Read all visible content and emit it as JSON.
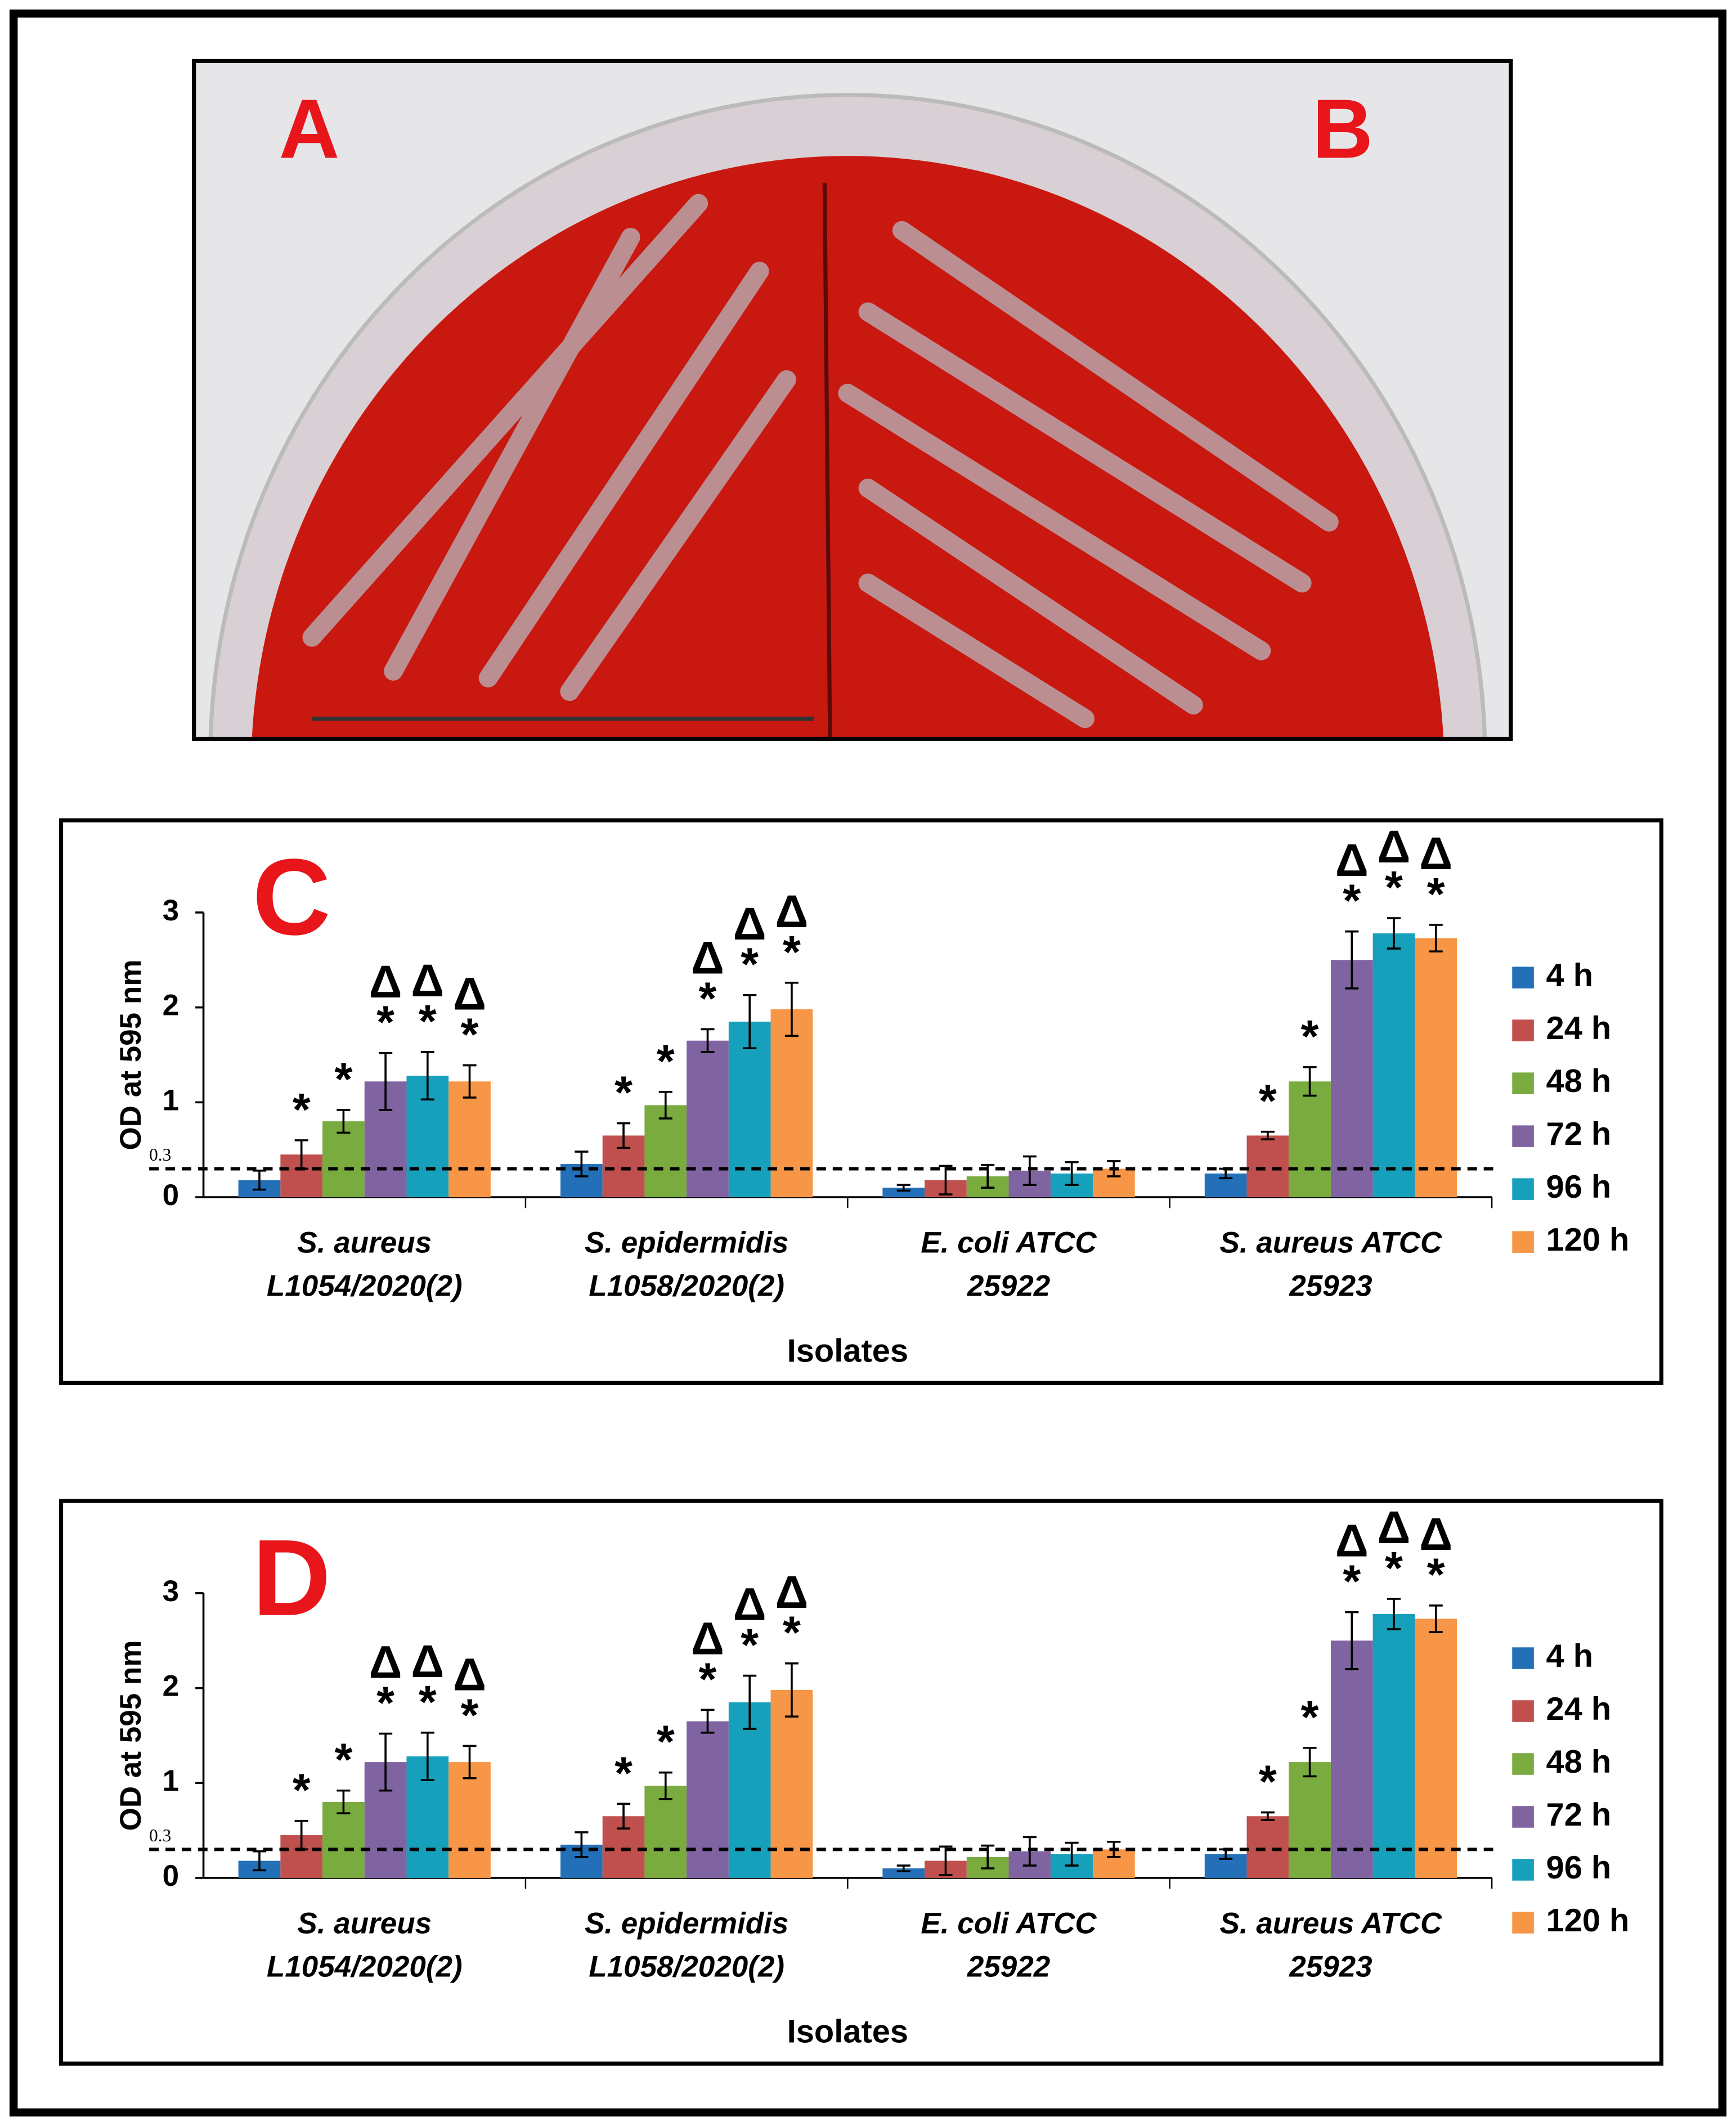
{
  "photo": {
    "labels": [
      "A",
      "B"
    ]
  },
  "chart_data": [
    {
      "type": "bar",
      "panel_label": "C",
      "ylabel": "OD at 595 nm",
      "xlabel": "Isolates",
      "categories": [
        [
          "S. aureus",
          "L1054/2020(2)"
        ],
        [
          "S. epidermidis",
          "L1058/2020(2)"
        ],
        [
          "E. coli ATCC",
          "25922"
        ],
        [
          "S. aureus ATCC",
          "25923"
        ]
      ],
      "ylim": [
        0,
        3
      ],
      "yticks": [
        0,
        1,
        2,
        3
      ],
      "threshold": {
        "value": 0.3,
        "label": "0.3"
      },
      "legend": "right",
      "series": [
        {
          "name": "4 h",
          "color": "#2370b8",
          "values": [
            0.18,
            0.35,
            0.1,
            0.25
          ],
          "errors": [
            0.1,
            0.13,
            0.03,
            0.05
          ],
          "annotations": [
            null,
            null,
            null,
            null
          ]
        },
        {
          "name": "24 h",
          "color": "#c0504d",
          "values": [
            0.45,
            0.65,
            0.18,
            0.65
          ],
          "errors": [
            0.15,
            0.13,
            0.15,
            0.04
          ],
          "annotations": [
            [
              "*"
            ],
            [
              "*"
            ],
            null,
            [
              "*"
            ]
          ]
        },
        {
          "name": "48 h",
          "color": "#7aab3f",
          "values": [
            0.8,
            0.97,
            0.22,
            1.22
          ],
          "errors": [
            0.12,
            0.14,
            0.12,
            0.15
          ],
          "annotations": [
            [
              "*"
            ],
            [
              "*"
            ],
            null,
            [
              "*"
            ]
          ]
        },
        {
          "name": "72 h",
          "color": "#8064a2",
          "values": [
            1.22,
            1.65,
            0.28,
            2.5
          ],
          "errors": [
            0.3,
            0.12,
            0.15,
            0.3
          ],
          "annotations": [
            [
              "Δ",
              "*"
            ],
            [
              "Δ",
              "*"
            ],
            null,
            [
              "Δ",
              "*"
            ]
          ]
        },
        {
          "name": "96 h",
          "color": "#17a0bb",
          "values": [
            1.28,
            1.85,
            0.25,
            2.78
          ],
          "errors": [
            0.25,
            0.28,
            0.12,
            0.16
          ],
          "annotations": [
            [
              "Δ",
              "*"
            ],
            [
              "Δ",
              "*"
            ],
            null,
            [
              "Δ",
              "*"
            ]
          ]
        },
        {
          "name": "120 h",
          "color": "#f79646",
          "values": [
            1.22,
            1.98,
            0.3,
            2.73
          ],
          "errors": [
            0.17,
            0.28,
            0.08,
            0.14
          ],
          "annotations": [
            [
              "Δ",
              "*"
            ],
            [
              "Δ",
              "*"
            ],
            null,
            [
              "Δ",
              "*"
            ]
          ]
        }
      ]
    },
    {
      "type": "bar",
      "panel_label": "D",
      "ylabel": "OD at 595 nm",
      "xlabel": "Isolates",
      "categories": [
        [
          "S. aureus",
          "L1054/2020(2)"
        ],
        [
          "S. epidermidis",
          "L1058/2020(2)"
        ],
        [
          "E. coli ATCC",
          "25922"
        ],
        [
          "S. aureus ATCC",
          "25923"
        ]
      ],
      "ylim": [
        0,
        3
      ],
      "yticks": [
        0,
        1,
        2,
        3
      ],
      "threshold": {
        "value": 0.3,
        "label": "0.3"
      },
      "legend": "right",
      "series": [
        {
          "name": "4 h",
          "color": "#2370b8",
          "values": [
            0.18,
            0.35,
            0.1,
            0.25
          ],
          "errors": [
            0.1,
            0.13,
            0.03,
            0.05
          ],
          "annotations": [
            null,
            null,
            null,
            null
          ]
        },
        {
          "name": "24 h",
          "color": "#c0504d",
          "values": [
            0.45,
            0.65,
            0.18,
            0.65
          ],
          "errors": [
            0.15,
            0.13,
            0.15,
            0.04
          ],
          "annotations": [
            [
              "*"
            ],
            [
              "*"
            ],
            null,
            [
              "*"
            ]
          ]
        },
        {
          "name": "48 h",
          "color": "#7aab3f",
          "values": [
            0.8,
            0.97,
            0.22,
            1.22
          ],
          "errors": [
            0.12,
            0.14,
            0.12,
            0.15
          ],
          "annotations": [
            [
              "*"
            ],
            [
              "*"
            ],
            null,
            [
              "*"
            ]
          ]
        },
        {
          "name": "72 h",
          "color": "#8064a2",
          "values": [
            1.22,
            1.65,
            0.28,
            2.5
          ],
          "errors": [
            0.3,
            0.12,
            0.15,
            0.3
          ],
          "annotations": [
            [
              "Δ",
              "*"
            ],
            [
              "Δ",
              "*"
            ],
            null,
            [
              "Δ",
              "*"
            ]
          ]
        },
        {
          "name": "96 h",
          "color": "#17a0bb",
          "values": [
            1.28,
            1.85,
            0.25,
            2.78
          ],
          "errors": [
            0.25,
            0.28,
            0.12,
            0.16
          ],
          "annotations": [
            [
              "Δ",
              "*"
            ],
            [
              "Δ",
              "*"
            ],
            null,
            [
              "Δ",
              "*"
            ]
          ]
        },
        {
          "name": "120 h",
          "color": "#f79646",
          "values": [
            1.22,
            1.98,
            0.3,
            2.73
          ],
          "errors": [
            0.17,
            0.28,
            0.08,
            0.14
          ],
          "annotations": [
            [
              "Δ",
              "*"
            ],
            [
              "Δ",
              "*"
            ],
            null,
            [
              "Δ",
              "*"
            ]
          ]
        }
      ]
    }
  ]
}
